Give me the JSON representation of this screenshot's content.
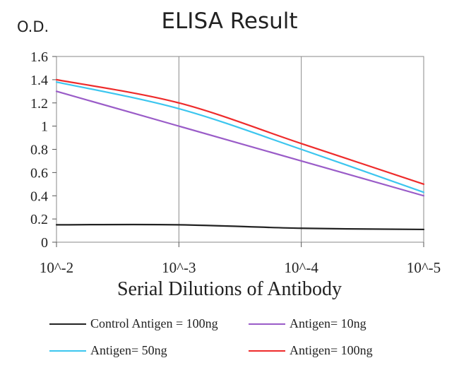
{
  "chart_data": {
    "type": "line",
    "title": "ELISA Result",
    "ylabel": "O.D.",
    "xlabel": "Serial  Dilutions  of Antibody",
    "categories": [
      "10^-2",
      "10^-3",
      "10^-4",
      "10^-5"
    ],
    "ylim": [
      0,
      1.6
    ],
    "yticks": [
      "0",
      "0.2",
      "0.4",
      "0.6",
      "0.8",
      "1",
      "1.2",
      "1.4",
      "1.6"
    ],
    "grid": true,
    "legend_position": "bottom",
    "series": [
      {
        "name": "Control Antigen = 100ng",
        "color": "#222222",
        "values": [
          0.15,
          0.15,
          0.12,
          0.11
        ]
      },
      {
        "name": "Antigen= 10ng",
        "color": "#9a5cc8",
        "values": [
          1.3,
          1.0,
          0.7,
          0.4
        ]
      },
      {
        "name": "Antigen= 50ng",
        "color": "#3cc6ef",
        "values": [
          1.38,
          1.15,
          0.8,
          0.43
        ]
      },
      {
        "name": "Antigen= 100ng",
        "color": "#ee2b2b",
        "values": [
          1.4,
          1.2,
          0.85,
          0.5
        ]
      }
    ]
  }
}
